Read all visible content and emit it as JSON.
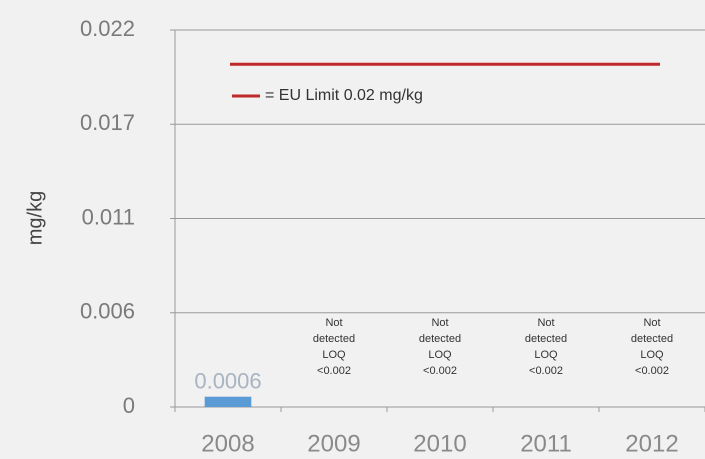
{
  "chart_data": {
    "type": "bar",
    "y_label": "mg/kg",
    "categories": [
      "2008",
      "2009",
      "2010",
      "2011",
      "2012"
    ],
    "values": [
      0.0006,
      null,
      null,
      null,
      null
    ],
    "color": "#5b9bd5",
    "annotations": [
      null,
      [
        "Not",
        "detected",
        "LOQ",
        "<0.002"
      ],
      [
        "Not",
        "detected",
        "LOQ",
        "<0.002"
      ],
      [
        "Not",
        "detected",
        "LOQ",
        "<0.002"
      ],
      [
        "Not",
        "detected",
        "LOQ",
        "<0.002"
      ]
    ],
    "limit": {
      "value": 0.02,
      "label": "= EU Limit 0.02 mg/kg",
      "color": "#c0282a"
    },
    "ylim": [
      0,
      0.022
    ],
    "yticks": [
      0,
      {
        "value": 0.0055,
        "label": "0.006"
      },
      0.011,
      {
        "value": 0.0165,
        "label": "0.017"
      },
      0.022
    ],
    "grid": true
  }
}
